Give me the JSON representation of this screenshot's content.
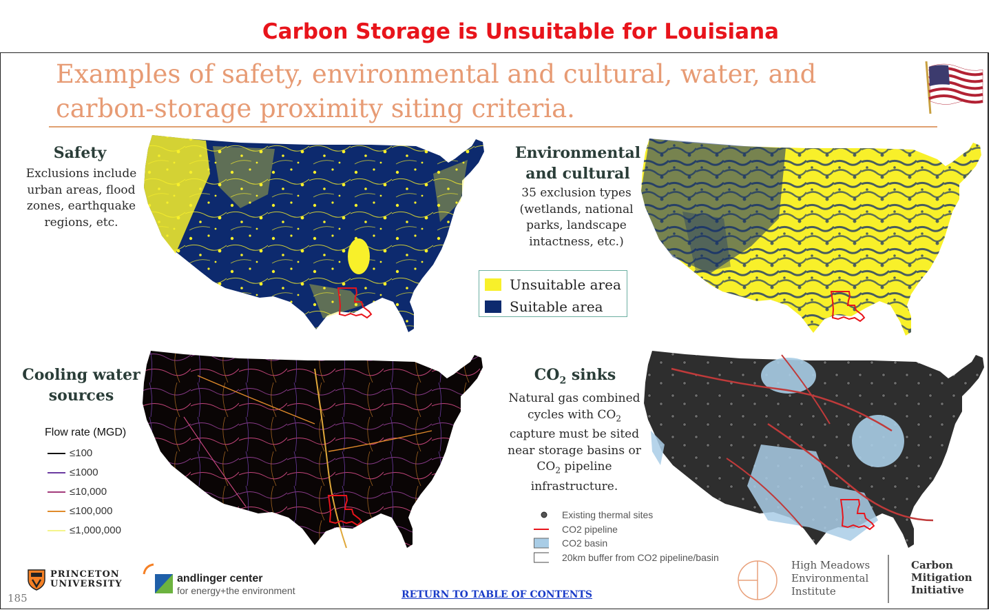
{
  "page_title": "Carbon Storage is Unsuitable for Louisiana",
  "slide": {
    "title_line1": "Examples of safety, environmental and cultural, water, and",
    "title_line2": "carbon-storage proximity siting criteria.",
    "page_number": "185",
    "return_link": "RETURN TO TABLE OF CONTENTS"
  },
  "panels": {
    "safety": {
      "heading": "Safety",
      "desc": [
        "Exclusions include",
        "urban areas, flood",
        "zones, earthquake",
        "regions, etc."
      ]
    },
    "environmental": {
      "heading": [
        "Environmental",
        "and cultural"
      ],
      "desc": [
        "35 exclusion types",
        "(wetlands, national",
        "parks, landscape",
        "intactness, etc.)"
      ]
    },
    "cooling": {
      "heading": [
        "Cooling water",
        "sources"
      ],
      "legend_title": "Flow rate (MGD)",
      "legend": [
        {
          "label": "≤100",
          "color": "#111111"
        },
        {
          "label": "≤1000",
          "color": "#6a3aa0"
        },
        {
          "label": "≤10,000",
          "color": "#a23a7a"
        },
        {
          "label": "≤100,000",
          "color": "#e08a2a"
        },
        {
          "label": "≤1,000,000",
          "color": "#f4f48a"
        }
      ]
    },
    "co2": {
      "heading_pre": "CO",
      "heading_sub": "2",
      "heading_post": " sinks",
      "desc": {
        "l1": "Natural gas combined",
        "l2_pre": "cycles with CO",
        "l2_sub": "2",
        "l3": "capture must be sited",
        "l4": "near storage basins or",
        "l5_pre": "CO",
        "l5_sub": "2",
        "l5_post": " pipeline",
        "l6": "infrastructure."
      },
      "legend": [
        {
          "label": "Existing thermal sites",
          "symbol": "dot"
        },
        {
          "label": "CO2 pipeline",
          "symbol": "red-line"
        },
        {
          "label": "CO2 basin",
          "symbol": "blue-box"
        },
        {
          "label": "20km buffer from CO2 pipeline/basin",
          "symbol": "outline-box"
        }
      ]
    }
  },
  "suitability_legend": [
    {
      "label": "Unsuitable area",
      "color": "#f8f02a"
    },
    {
      "label": "Suitable area",
      "color": "#0d2a6e"
    }
  ],
  "logos": {
    "princeton": [
      "PRINCETON",
      "UNIVERSITY"
    ],
    "andlinger_name": "andlinger center",
    "andlinger_sub": "for energy+the environment",
    "high_meadows": [
      "High Meadows",
      "Environmental",
      "Institute"
    ],
    "cmi": [
      "Carbon",
      "Mitigation",
      "Initiative"
    ]
  },
  "colors": {
    "alert_red": "#e8141b",
    "title_salmon": "#e79b74",
    "louisiana_outline": "#e8141b",
    "map_navy": "#0d2a6e",
    "map_yellow": "#f8f02a",
    "map_dark": "#2e2e2e",
    "basin_blue": "#a9cde6"
  }
}
